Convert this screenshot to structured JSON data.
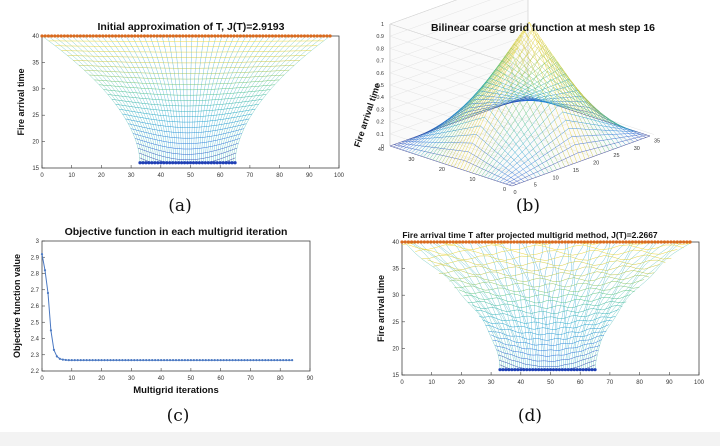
{
  "captions": {
    "a": "(a)",
    "b": "(b)",
    "c": "(c)",
    "d": "(d)"
  },
  "chart_data": [
    {
      "id": "a",
      "type": "surface",
      "title": "Initial approximation of T, J(T)=2.9193",
      "xlabel": "",
      "ylabel": "Fire arrival time",
      "xlim": [
        0,
        100
      ],
      "ylim": [
        15,
        40
      ],
      "xticks": [
        "0",
        "10",
        "20",
        "30",
        "40",
        "50",
        "60",
        "70",
        "80",
        "90",
        "100"
      ],
      "yticks": [
        "15",
        "20",
        "25",
        "30",
        "35",
        "40"
      ],
      "top_edge": {
        "x": [
          0,
          97
        ],
        "y": 40
      },
      "bottom_edge": {
        "x": [
          33,
          65
        ],
        "y": 16
      },
      "grid": false
    },
    {
      "id": "b",
      "type": "surface3d",
      "title": "Bilinear coarse grid function at mesh step 16",
      "zlabel": "Fire arrival time",
      "zticks": [
        "0",
        "0.1",
        "0.2",
        "0.3",
        "0.4",
        "0.5",
        "0.6",
        "0.7",
        "0.8",
        "0.9",
        "1"
      ],
      "xticks": [
        "0",
        "5",
        "10",
        "15",
        "20",
        "25",
        "30",
        "35"
      ],
      "yticks": [
        "0",
        "10",
        "20",
        "30",
        "40"
      ],
      "peak": {
        "x": 17,
        "y": 17,
        "z": 1
      },
      "grid": true
    },
    {
      "id": "c",
      "type": "line",
      "title": "Objective function in each multigrid iteration",
      "xlabel": "Multigrid iterations",
      "ylabel": "Objective function value",
      "xlim": [
        0,
        90
      ],
      "ylim": [
        2.2,
        3
      ],
      "xticks": [
        "0",
        "10",
        "20",
        "30",
        "40",
        "50",
        "60",
        "70",
        "80",
        "90"
      ],
      "yticks": [
        "2.2",
        "2.3",
        "2.4",
        "2.5",
        "2.6",
        "2.7",
        "2.8",
        "2.9",
        "3"
      ],
      "x_start": 0,
      "x_end": 84,
      "values_head": [
        2.9193,
        2.82,
        2.68,
        2.45,
        2.33,
        2.29,
        2.275,
        2.27,
        2.268
      ],
      "tail_value": 2.2667,
      "color": "#4a78c2",
      "grid": false
    },
    {
      "id": "d",
      "type": "surface",
      "title": "Fire arrival time T after projected multigrid method, J(T)=2.2667",
      "xlabel": "",
      "ylabel": "Fire arrival time",
      "xlim": [
        0,
        100
      ],
      "ylim": [
        15,
        40
      ],
      "xticks": [
        "0",
        "10",
        "20",
        "30",
        "40",
        "50",
        "60",
        "70",
        "80",
        "90",
        "100"
      ],
      "yticks": [
        "15",
        "20",
        "25",
        "30",
        "35",
        "40"
      ],
      "top_edge": {
        "x": [
          0,
          97
        ],
        "y": 40
      },
      "bottom_edge": {
        "x": [
          33,
          65
        ],
        "y": 16
      },
      "grid": false
    }
  ]
}
